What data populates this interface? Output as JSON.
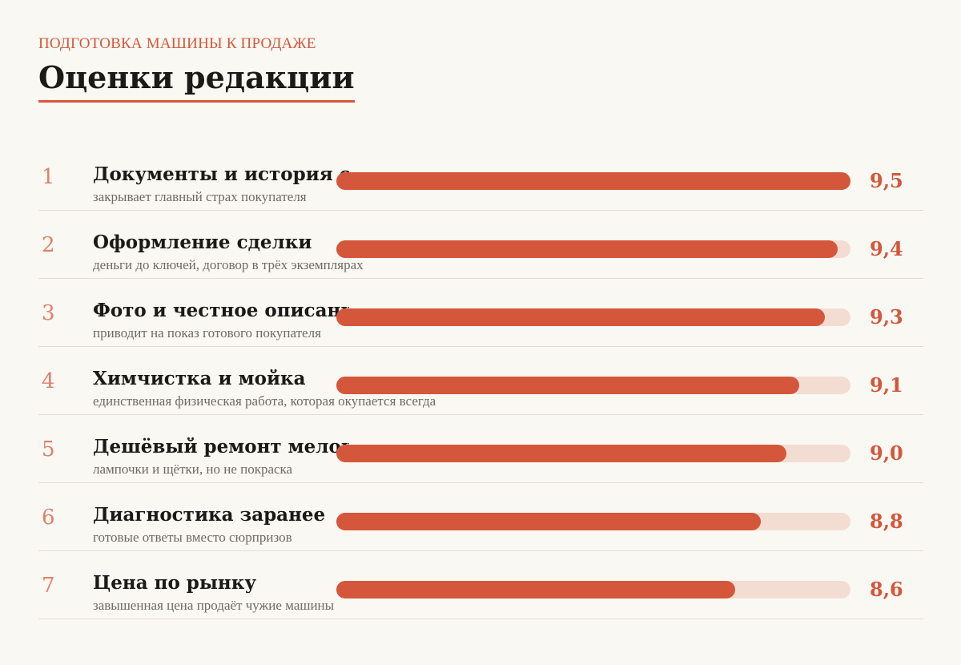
{
  "kicker": "ПОДГОТОВКА МАШИНЫ К ПРОДАЖЕ",
  "title": "Оценки редакции",
  "colors": {
    "accent": "#d4573b",
    "track": "#f3ddd3",
    "rank": "#e0806b",
    "background": "#faf8f2"
  },
  "chart_data": {
    "type": "bar",
    "orientation": "horizontal",
    "title": "Оценки редакции",
    "xlim": [
      5.5,
      9.5
    ],
    "grid": false,
    "categories": [
      "Документы и история обслуживания",
      "Оформление сделки",
      "Фото и честное описание",
      "Химчистка и мойка",
      "Дешёвый ремонт мелочей",
      "Диагностика заранее",
      "Цена по рынку"
    ],
    "values": [
      9.5,
      9.4,
      9.3,
      9.1,
      9.0,
      8.8,
      8.6
    ],
    "items": [
      {
        "rank": "1",
        "label": "Документы и история обслуживания",
        "sub": "закрывает главный страх покупателя",
        "value": 9.5,
        "value_label": "9,5"
      },
      {
        "rank": "2",
        "label": "Оформление сделки",
        "sub": "деньги до ключей, договор в трёх экземплярах",
        "value": 9.4,
        "value_label": "9,4"
      },
      {
        "rank": "3",
        "label": "Фото и честное описание",
        "sub": "приводит на показ готового покупателя",
        "value": 9.3,
        "value_label": "9,3"
      },
      {
        "rank": "4",
        "label": "Химчистка и мойка",
        "sub": "единственная физическая работа, которая окупается всегда",
        "value": 9.1,
        "value_label": "9,1"
      },
      {
        "rank": "5",
        "label": "Дешёвый ремонт мелочей",
        "sub": "лампочки и щётки, но не покраска",
        "value": 9.0,
        "value_label": "9,0"
      },
      {
        "rank": "6",
        "label": "Диагностика заранее",
        "sub": "готовые ответы вместо сюрпризов",
        "value": 8.8,
        "value_label": "8,8"
      },
      {
        "rank": "7",
        "label": "Цена по рынку",
        "sub": "завышенная цена продаёт чужие машины",
        "value": 8.6,
        "value_label": "8,6"
      }
    ]
  }
}
